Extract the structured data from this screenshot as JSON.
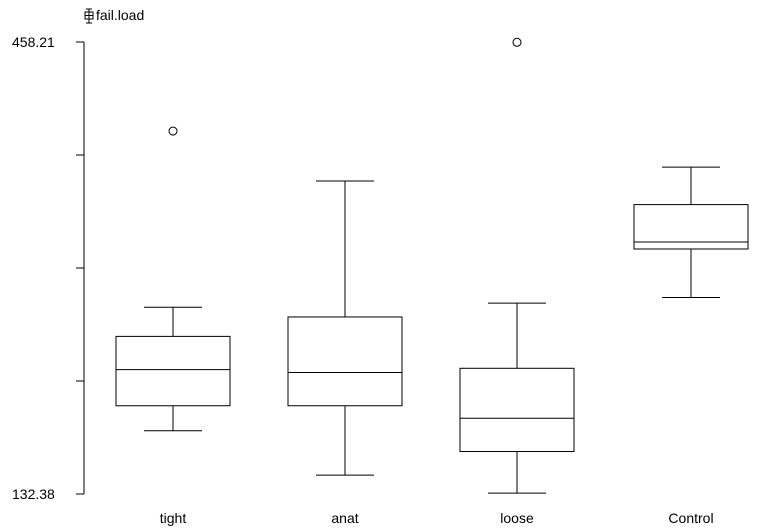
{
  "chart_data": {
    "type": "boxplot",
    "variable_label": "fail.load",
    "variable_icon": "boxplot-icon",
    "ylim": [
      132.38,
      458.21
    ],
    "y_tick_labels": [
      "458.21",
      "132.38"
    ],
    "categories": [
      "tight",
      "anat",
      "loose",
      "Control"
    ],
    "boxes": [
      {
        "category": "tight",
        "whisker_low": 178,
        "q1": 196,
        "median": 222,
        "q3": 246,
        "whisker_high": 267,
        "outliers": [
          394
        ]
      },
      {
        "category": "anat",
        "whisker_low": 146,
        "q1": 196,
        "median": 220,
        "q3": 260,
        "whisker_high": 358,
        "outliers": []
      },
      {
        "category": "loose",
        "whisker_low": 133,
        "q1": 163,
        "median": 187,
        "q3": 223,
        "whisker_high": 270,
        "outliers": [
          458
        ]
      },
      {
        "category": "Control",
        "whisker_low": 274,
        "q1": 309,
        "median": 314,
        "q3": 341,
        "whisker_high": 368,
        "outliers": []
      }
    ]
  }
}
